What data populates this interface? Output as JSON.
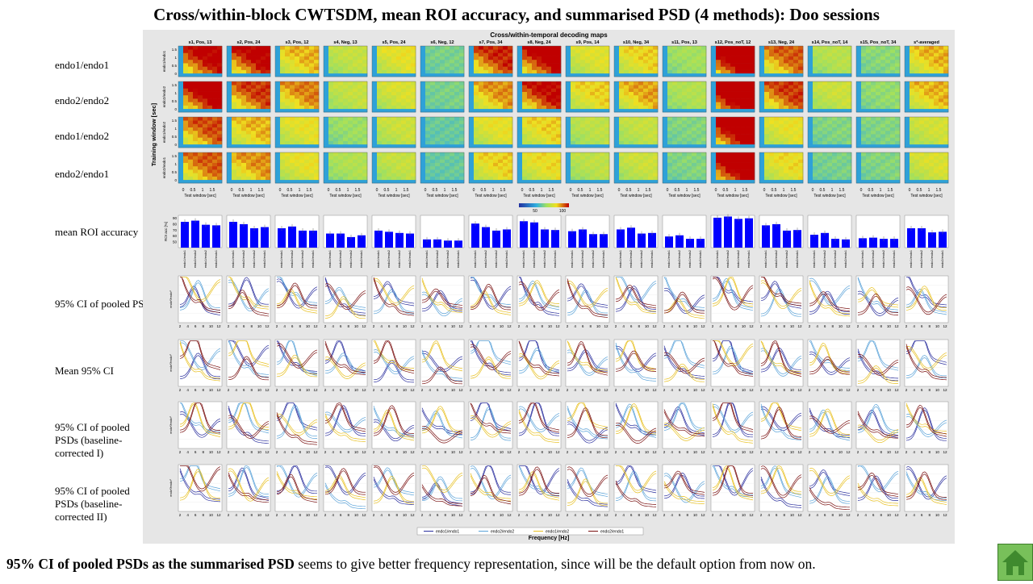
{
  "title": "Cross/within-block CWTSDM, mean ROI accuracy, and summarised PSD (4 methods): Doo sessions",
  "row_labels": [
    "endo1/endo1",
    "endo2/endo2",
    "endo1/endo2",
    "endo2/endo1",
    "mean ROI accuracy",
    "95% CI of pooled PSDs",
    "Mean 95% CI",
    "95% CI of pooled PSDs (baseline-corrected I)",
    "95% CI of pooled PSDs (baseline-corrected II)"
  ],
  "footer": {
    "bold": "95% CI of pooled PSDs as the summarised  PSD",
    "rest": " seems to give better frequency  representation,  since will be the default option from now on."
  },
  "figure": {
    "suptitle": "Cross/within-temporal decoding maps",
    "ylabel_maps": "Training window [sec]",
    "map_yticks": [
      "1.5",
      "1",
      "0.5",
      "0"
    ],
    "map_ylabels": [
      "endo1/endo1",
      "endo2/endo2",
      "endo1/endo2",
      "endo2/endo1"
    ],
    "map_xticks": [
      "0",
      "0.5",
      "1",
      "1.5"
    ],
    "map_xlabel": "Test window [sec]",
    "colorbar_ticks": [
      "50",
      "100"
    ],
    "freq_xlabel": "Frequency [Hz]",
    "freq_xticks": [
      "2",
      "4",
      "6",
      "8",
      "10",
      "12"
    ],
    "psd_ylabel": "endo²/endo²",
    "roi_ylabel": "ROI acc [%]"
  },
  "legend": [
    "endo1/endo1",
    "endo2/endo2",
    "endo1/endo2",
    "endo2/endo1"
  ],
  "colors": {
    "endo1/endo1": "#2b2f9e",
    "endo2/endo2": "#5ba3d9",
    "endo1/endo2": "#e8c020",
    "endo2/endo1": "#7a1010",
    "bar": "#0000ff",
    "home_button": "#78c05a"
  },
  "chart_data": {
    "type": "bar",
    "title": "mean ROI accuracy",
    "ylabel": "ROI acc [%]",
    "ylim": [
      40,
      95
    ],
    "yticks": [
      50,
      60,
      70,
      80,
      90
    ],
    "categories": [
      "endo1/endo1",
      "endo2/endo2",
      "endo1/endo2",
      "endo2/endo1"
    ],
    "sessions": [
      {
        "name": "s1, Pos, 13",
        "values": [
          84,
          86,
          79,
          78
        ]
      },
      {
        "name": "s2, Pos, 24",
        "values": [
          84,
          80,
          73,
          75
        ]
      },
      {
        "name": "s3, Pos, 12",
        "values": [
          73,
          76,
          69,
          69
        ]
      },
      {
        "name": "s4, Neg, 13",
        "values": [
          64,
          64,
          58,
          61
        ]
      },
      {
        "name": "s5, Pos, 24",
        "values": [
          69,
          67,
          65,
          64
        ]
      },
      {
        "name": "s6, Neg, 12",
        "values": [
          54,
          54,
          52,
          52
        ]
      },
      {
        "name": "s7, Pos, 34",
        "values": [
          81,
          75,
          69,
          71
        ]
      },
      {
        "name": "s8, Neg, 24",
        "values": [
          85,
          83,
          71,
          70
        ]
      },
      {
        "name": "s9, Pos, 14",
        "values": [
          68,
          71,
          63,
          63
        ]
      },
      {
        "name": "s10, Neg, 34",
        "values": [
          71,
          74,
          64,
          65
        ]
      },
      {
        "name": "s11, Pos, 13",
        "values": [
          59,
          61,
          55,
          55
        ]
      },
      {
        "name": "s12, Pos_noT, 12",
        "values": [
          91,
          93,
          89,
          90
        ]
      },
      {
        "name": "s13, Neg, 24",
        "values": [
          78,
          80,
          69,
          70
        ]
      },
      {
        "name": "s14, Pos_noT, 14",
        "values": [
          62,
          65,
          55,
          54
        ]
      },
      {
        "name": "s15, Pos_noT, 34",
        "values": [
          56,
          57,
          55,
          55
        ]
      },
      {
        "name": "s*-averaged",
        "values": [
          73,
          73,
          66,
          67
        ]
      }
    ]
  }
}
